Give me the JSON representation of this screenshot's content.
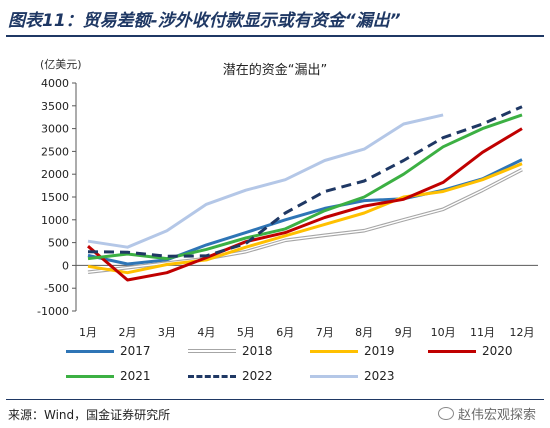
{
  "header": {
    "figure_title": "图表11：贸易差额-涉外收付款显示或有资金“漏出”"
  },
  "chart_data": {
    "type": "line",
    "title": "潜在的资金“漏出”",
    "ylabel": "(亿美元)",
    "xlabel": "",
    "ylim": [
      -1000,
      4000
    ],
    "yticks": [
      -1000,
      -500,
      0,
      500,
      1000,
      1500,
      2000,
      2500,
      3000,
      3500,
      4000
    ],
    "ytick_labels": [
      "-1000",
      "-500",
      "0",
      "500",
      "1000",
      "1500",
      "2000",
      "2500",
      "3000",
      "3500",
      "4000"
    ],
    "categories": [
      "1月",
      "2月",
      "3月",
      "4月",
      "5月",
      "6月",
      "7月",
      "8月",
      "9月",
      "10月",
      "11月",
      "12月"
    ],
    "grid": false,
    "legend_position": "bottom",
    "series": [
      {
        "name": "2017",
        "color": "#2e75b6",
        "dash": "solid",
        "width": 3,
        "values": [
          220,
          30,
          120,
          450,
          720,
          1000,
          1250,
          1420,
          1460,
          1650,
          1900,
          2320
        ]
      },
      {
        "name": "2018",
        "color": "#a6a6a6",
        "dash": "double",
        "width": 3,
        "values": [
          -150,
          -50,
          50,
          150,
          300,
          550,
          660,
          760,
          1000,
          1230,
          1650,
          2100
        ]
      },
      {
        "name": "2019",
        "color": "#ffc000",
        "dash": "solid",
        "width": 3,
        "values": [
          -20,
          -160,
          20,
          120,
          400,
          650,
          900,
          1150,
          1500,
          1620,
          1880,
          2230
        ]
      },
      {
        "name": "2020",
        "color": "#c00000",
        "dash": "solid",
        "width": 3,
        "values": [
          420,
          -320,
          -160,
          170,
          520,
          720,
          1050,
          1300,
          1450,
          1820,
          2480,
          3000
        ]
      },
      {
        "name": "2021",
        "color": "#3cb043",
        "dash": "solid",
        "width": 3,
        "values": [
          150,
          250,
          150,
          350,
          600,
          800,
          1200,
          1500,
          2000,
          2600,
          3000,
          3300
        ]
      },
      {
        "name": "2022",
        "color": "#1f3864",
        "dash": "dashed",
        "width": 3,
        "values": [
          300,
          290,
          200,
          210,
          480,
          1150,
          1620,
          1850,
          2300,
          2800,
          3100,
          3480
        ]
      },
      {
        "name": "2023",
        "color": "#b4c7e7",
        "dash": "solid",
        "width": 3,
        "values": [
          530,
          400,
          760,
          1340,
          1650,
          1880,
          2300,
          2550,
          3100,
          3300,
          null,
          null
        ]
      }
    ]
  },
  "footer": {
    "source": "来源：Wind，国金证券研究所",
    "watermark": "赵伟宏观探索"
  }
}
